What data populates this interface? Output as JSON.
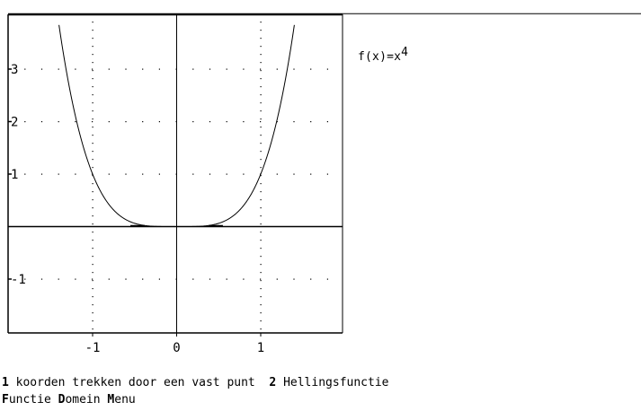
{
  "function_label": {
    "prefix": "f(x)=x",
    "exponent": "4"
  },
  "chart_data": {
    "type": "line",
    "function": "x^4",
    "xlim": [
      -2,
      2
    ],
    "ylim": [
      -2,
      4
    ],
    "x_ticks": [
      -1,
      0,
      1
    ],
    "x_tick_labels": [
      "-1",
      "0",
      "1"
    ],
    "y_ticks": [
      3,
      2,
      1,
      -1
    ],
    "y_tick_labels": [
      "3",
      "2",
      "1",
      "-1"
    ],
    "grid": "dotted",
    "series": [
      {
        "values_x": [
          -1.4,
          -1.3,
          -1.2,
          -1.1,
          -1.0,
          -0.9,
          -0.8,
          -0.7,
          -0.6,
          -0.5,
          -0.4,
          -0.3,
          -0.2,
          -0.1,
          0,
          0.1,
          0.2,
          0.3,
          0.4,
          0.5,
          0.6,
          0.7,
          0.8,
          0.9,
          1.0,
          1.1,
          1.2,
          1.3,
          1.4
        ],
        "values_y": [
          3.8416,
          2.8561,
          2.0736,
          1.4641,
          1.0,
          0.6561,
          0.4096,
          0.2401,
          0.1296,
          0.0625,
          0.0256,
          0.0081,
          0.0016,
          0.0001,
          0,
          0.0001,
          0.0016,
          0.0081,
          0.0256,
          0.0625,
          0.1296,
          0.2401,
          0.4096,
          0.6561,
          1.0,
          1.4641,
          2.0736,
          2.8561,
          3.8416
        ]
      }
    ]
  },
  "options": {
    "opt1_key": "1",
    "opt1_text": " koorden trekken door een vast punt  ",
    "opt2_key": "2",
    "opt2_text": " Hellingsfunctie"
  },
  "menu": {
    "functie_hot": "F",
    "functie_rest": "unctie ",
    "domein_hot": "D",
    "domein_rest": "omein ",
    "menu_hot": "M",
    "menu_rest": "enu"
  }
}
